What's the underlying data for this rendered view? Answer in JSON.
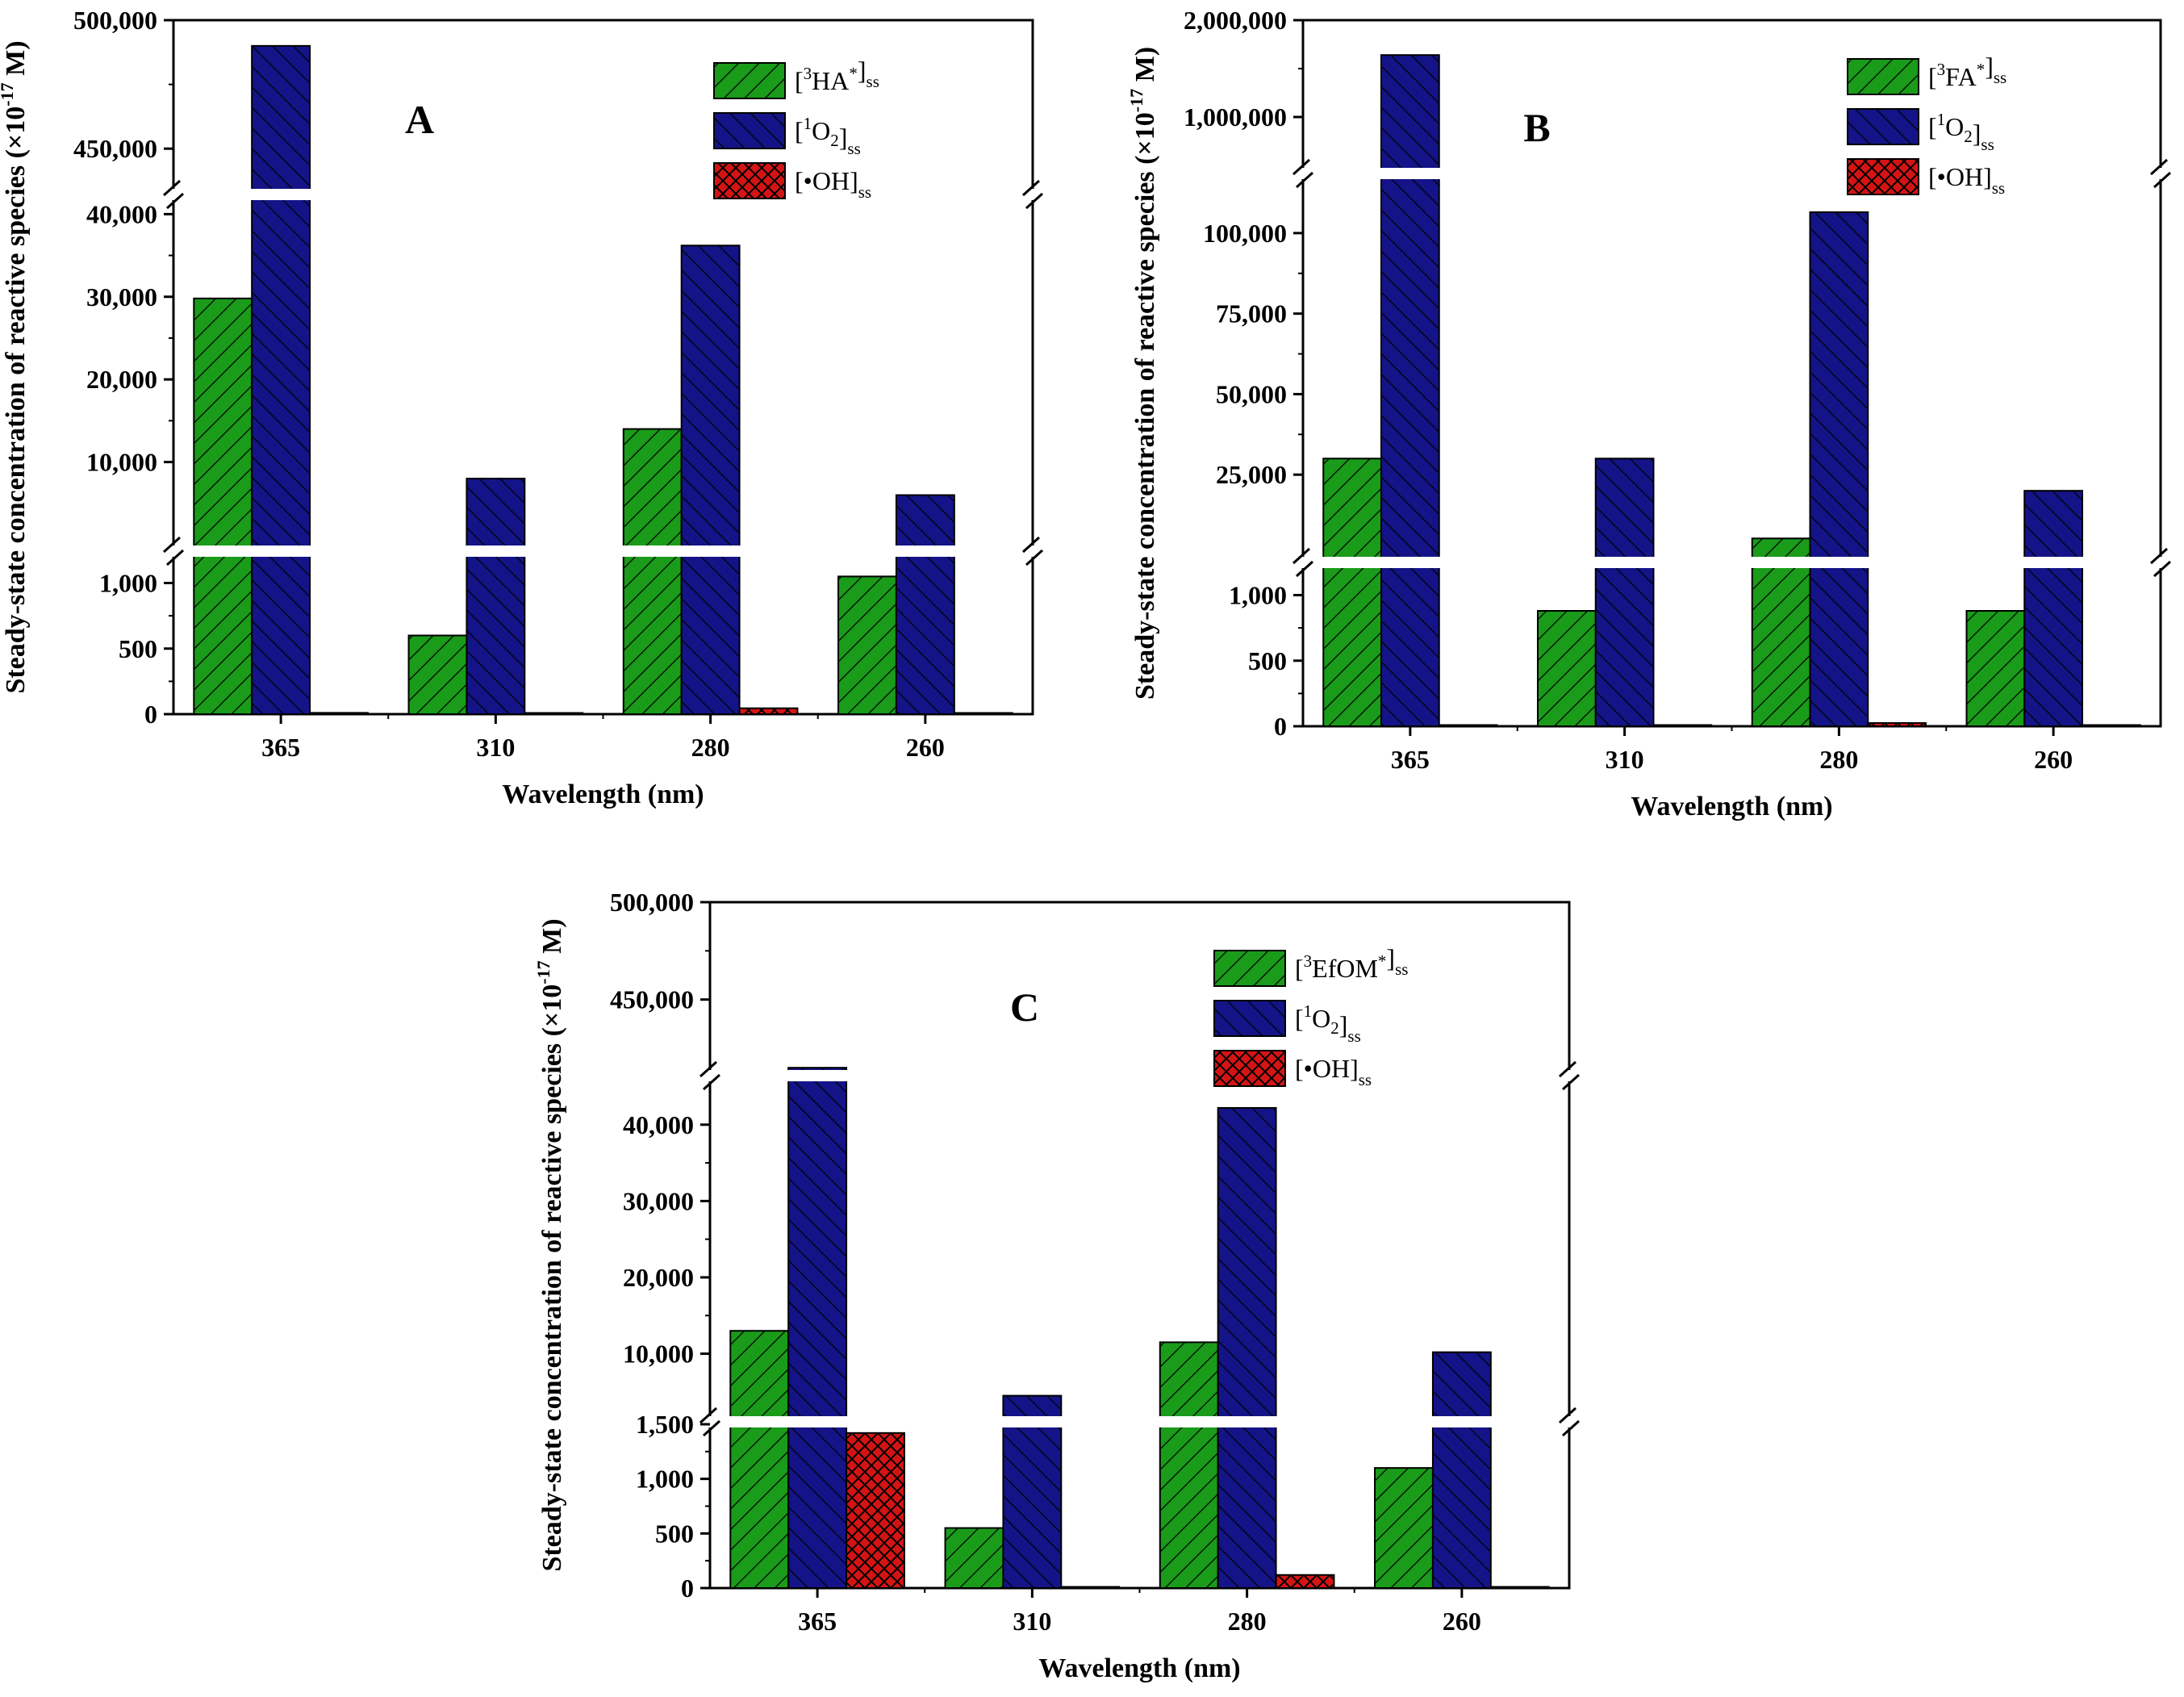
{
  "colors": {
    "green": "#1a9b1a",
    "blue": "#141488",
    "red": "#d41414"
  },
  "chart_data": [
    {
      "panel": "A",
      "type": "bar",
      "categories": [
        "365",
        "310",
        "280",
        "260"
      ],
      "xlabel": "Wavelength (nm)",
      "ylabel": "Steady-state concentration of reactive species (×10",
      "ylabel_exp": "-17",
      "ylabel_tail": " M)",
      "segments": [
        {
          "range": [
            0,
            1200
          ],
          "ticks": [
            0,
            500,
            1000
          ],
          "tick_labels": [
            "0",
            "500",
            "1,000"
          ]
        },
        {
          "range": [
            0,
            41500
          ],
          "ticks": [
            10000,
            20000,
            30000,
            40000
          ],
          "tick_labels": [
            "10,000",
            "20,000",
            "30,000",
            "40,000"
          ]
        },
        {
          "range": [
            435000,
            500000
          ],
          "ticks": [
            450000,
            500000
          ],
          "tick_labels": [
            "450,000",
            "500,000"
          ]
        }
      ],
      "series": [
        {
          "name": "HA",
          "legend_pre": "[",
          "legend_sup1": "3",
          "legend_main": "HA",
          "legend_sup2": "*",
          "legend_post": "]",
          "legend_sub": "ss",
          "color": "green",
          "pattern": "hatch",
          "values": [
            29800,
            600,
            14000,
            1050
          ]
        },
        {
          "name": "O2",
          "legend_pre": "[",
          "legend_sup1": "1",
          "legend_main": "O",
          "legend_sub_inner": "2",
          "legend_post": "]",
          "legend_sub": "ss",
          "color": "blue",
          "pattern": "hatch",
          "values": [
            490000,
            8000,
            36200,
            6000
          ]
        },
        {
          "name": "OH",
          "legend_pre": "",
          "legend_main": "[•OH]",
          "legend_sub": "ss",
          "color": "red",
          "pattern": "cross",
          "values": [
            10,
            2,
            45,
            1
          ]
        }
      ]
    },
    {
      "panel": "B",
      "type": "bar",
      "categories": [
        "365",
        "310",
        "280",
        "260"
      ],
      "xlabel": "Wavelength (nm)",
      "ylabel": "Steady-state concentration of reactive species (×10",
      "ylabel_exp": "-17",
      "ylabel_tail": " M)",
      "segments": [
        {
          "range": [
            0,
            1200
          ],
          "ticks": [
            0,
            500,
            1000
          ],
          "tick_labels": [
            "0",
            "500",
            "1,000"
          ]
        },
        {
          "range": [
            0,
            116000
          ],
          "ticks": [
            25000,
            50000,
            75000,
            100000
          ],
          "tick_labels": [
            "25,000",
            "50,000",
            "75,000",
            "100,000"
          ]
        },
        {
          "range": [
            500000,
            2000000
          ],
          "ticks": [
            1000000,
            2000000
          ],
          "tick_labels": [
            "1,000,000",
            "2,000,000"
          ]
        }
      ],
      "series": [
        {
          "name": "FA",
          "legend_pre": "[",
          "legend_sup1": "3",
          "legend_main": "FA",
          "legend_sup2": "*",
          "legend_post": "]",
          "legend_sub": "ss",
          "color": "green",
          "pattern": "hatch",
          "values": [
            30000,
            880,
            5200,
            880
          ]
        },
        {
          "name": "O2",
          "legend_pre": "[",
          "legend_sup1": "1",
          "legend_main": "O",
          "legend_sub_inner": "2",
          "legend_post": "]",
          "legend_sub": "ss",
          "color": "blue",
          "pattern": "hatch",
          "values": [
            1640000,
            30000,
            106500,
            20000
          ]
        },
        {
          "name": "OH",
          "legend_pre": "",
          "legend_main": "[•OH]",
          "legend_sub": "ss",
          "color": "red",
          "pattern": "cross",
          "values": [
            3,
            2,
            25,
            1
          ]
        }
      ]
    },
    {
      "panel": "C",
      "type": "bar",
      "categories": [
        "365",
        "310",
        "280",
        "260"
      ],
      "xlabel": "Wavelength (nm)",
      "ylabel": "Steady-state concentration of reactive species (×10",
      "ylabel_exp": "-17",
      "ylabel_tail": " M)",
      "segments": [
        {
          "range": [
            0,
            1500
          ],
          "ticks": [
            0,
            500,
            1000,
            1500
          ],
          "tick_labels": [
            "0",
            "500",
            "1,000",
            "1,500"
          ]
        },
        {
          "range": [
            1500,
            46000
          ],
          "ticks": [
            10000,
            20000,
            30000,
            40000
          ],
          "tick_labels": [
            "10,000",
            "20,000",
            "30,000",
            "40,000"
          ]
        },
        {
          "range": [
            413000,
            500000
          ],
          "ticks": [
            450000,
            500000
          ],
          "tick_labels": [
            "450,000",
            "500,000"
          ]
        }
      ],
      "series": [
        {
          "name": "EfOM",
          "legend_pre": "[",
          "legend_sup1": "3",
          "legend_main": "EfOM",
          "legend_sup2": "*",
          "legend_post": "]",
          "legend_sub": "ss",
          "color": "green",
          "pattern": "hatch",
          "values": [
            13000,
            550,
            11500,
            1100
          ]
        },
        {
          "name": "O2",
          "legend_pre": "[",
          "legend_sup1": "1",
          "legend_main": "O",
          "legend_sub_inner": "2",
          "legend_post": "]",
          "legend_sub": "ss",
          "color": "blue",
          "pattern": "hatch",
          "values": [
            415000,
            4500,
            42200,
            10200
          ]
        },
        {
          "name": "OH",
          "legend_pre": "",
          "legend_main": "[•OH]",
          "legend_sub": "ss",
          "color": "red",
          "pattern": "cross",
          "values": [
            1420,
            10,
            120,
            1
          ]
        }
      ]
    }
  ]
}
